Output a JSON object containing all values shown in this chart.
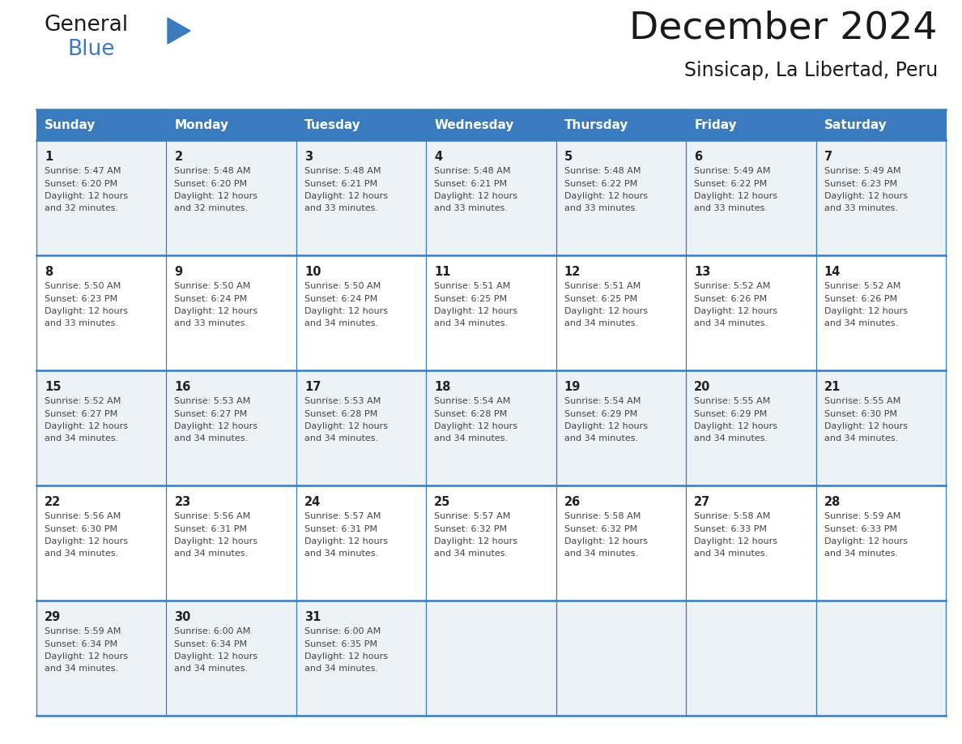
{
  "title": "December 2024",
  "subtitle": "Sinsicap, La Libertad, Peru",
  "header_bg_color": "#3a7bbf",
  "header_text_color": "#ffffff",
  "days_of_week": [
    "Sunday",
    "Monday",
    "Tuesday",
    "Wednesday",
    "Thursday",
    "Friday",
    "Saturday"
  ],
  "cell_bg_even": "#edf2f7",
  "cell_bg_odd": "#ffffff",
  "grid_line_color": "#3a7bbf",
  "day_number_color": "#222222",
  "cell_text_color": "#444444",
  "calendar": [
    [
      {
        "day": 1,
        "sunrise": "5:47 AM",
        "sunset": "6:20 PM",
        "daylight_hrs": 12,
        "daylight_min": 32
      },
      {
        "day": 2,
        "sunrise": "5:48 AM",
        "sunset": "6:20 PM",
        "daylight_hrs": 12,
        "daylight_min": 32
      },
      {
        "day": 3,
        "sunrise": "5:48 AM",
        "sunset": "6:21 PM",
        "daylight_hrs": 12,
        "daylight_min": 33
      },
      {
        "day": 4,
        "sunrise": "5:48 AM",
        "sunset": "6:21 PM",
        "daylight_hrs": 12,
        "daylight_min": 33
      },
      {
        "day": 5,
        "sunrise": "5:48 AM",
        "sunset": "6:22 PM",
        "daylight_hrs": 12,
        "daylight_min": 33
      },
      {
        "day": 6,
        "sunrise": "5:49 AM",
        "sunset": "6:22 PM",
        "daylight_hrs": 12,
        "daylight_min": 33
      },
      {
        "day": 7,
        "sunrise": "5:49 AM",
        "sunset": "6:23 PM",
        "daylight_hrs": 12,
        "daylight_min": 33
      }
    ],
    [
      {
        "day": 8,
        "sunrise": "5:50 AM",
        "sunset": "6:23 PM",
        "daylight_hrs": 12,
        "daylight_min": 33
      },
      {
        "day": 9,
        "sunrise": "5:50 AM",
        "sunset": "6:24 PM",
        "daylight_hrs": 12,
        "daylight_min": 33
      },
      {
        "day": 10,
        "sunrise": "5:50 AM",
        "sunset": "6:24 PM",
        "daylight_hrs": 12,
        "daylight_min": 34
      },
      {
        "day": 11,
        "sunrise": "5:51 AM",
        "sunset": "6:25 PM",
        "daylight_hrs": 12,
        "daylight_min": 34
      },
      {
        "day": 12,
        "sunrise": "5:51 AM",
        "sunset": "6:25 PM",
        "daylight_hrs": 12,
        "daylight_min": 34
      },
      {
        "day": 13,
        "sunrise": "5:52 AM",
        "sunset": "6:26 PM",
        "daylight_hrs": 12,
        "daylight_min": 34
      },
      {
        "day": 14,
        "sunrise": "5:52 AM",
        "sunset": "6:26 PM",
        "daylight_hrs": 12,
        "daylight_min": 34
      }
    ],
    [
      {
        "day": 15,
        "sunrise": "5:52 AM",
        "sunset": "6:27 PM",
        "daylight_hrs": 12,
        "daylight_min": 34
      },
      {
        "day": 16,
        "sunrise": "5:53 AM",
        "sunset": "6:27 PM",
        "daylight_hrs": 12,
        "daylight_min": 34
      },
      {
        "day": 17,
        "sunrise": "5:53 AM",
        "sunset": "6:28 PM",
        "daylight_hrs": 12,
        "daylight_min": 34
      },
      {
        "day": 18,
        "sunrise": "5:54 AM",
        "sunset": "6:28 PM",
        "daylight_hrs": 12,
        "daylight_min": 34
      },
      {
        "day": 19,
        "sunrise": "5:54 AM",
        "sunset": "6:29 PM",
        "daylight_hrs": 12,
        "daylight_min": 34
      },
      {
        "day": 20,
        "sunrise": "5:55 AM",
        "sunset": "6:29 PM",
        "daylight_hrs": 12,
        "daylight_min": 34
      },
      {
        "day": 21,
        "sunrise": "5:55 AM",
        "sunset": "6:30 PM",
        "daylight_hrs": 12,
        "daylight_min": 34
      }
    ],
    [
      {
        "day": 22,
        "sunrise": "5:56 AM",
        "sunset": "6:30 PM",
        "daylight_hrs": 12,
        "daylight_min": 34
      },
      {
        "day": 23,
        "sunrise": "5:56 AM",
        "sunset": "6:31 PM",
        "daylight_hrs": 12,
        "daylight_min": 34
      },
      {
        "day": 24,
        "sunrise": "5:57 AM",
        "sunset": "6:31 PM",
        "daylight_hrs": 12,
        "daylight_min": 34
      },
      {
        "day": 25,
        "sunrise": "5:57 AM",
        "sunset": "6:32 PM",
        "daylight_hrs": 12,
        "daylight_min": 34
      },
      {
        "day": 26,
        "sunrise": "5:58 AM",
        "sunset": "6:32 PM",
        "daylight_hrs": 12,
        "daylight_min": 34
      },
      {
        "day": 27,
        "sunrise": "5:58 AM",
        "sunset": "6:33 PM",
        "daylight_hrs": 12,
        "daylight_min": 34
      },
      {
        "day": 28,
        "sunrise": "5:59 AM",
        "sunset": "6:33 PM",
        "daylight_hrs": 12,
        "daylight_min": 34
      }
    ],
    [
      {
        "day": 29,
        "sunrise": "5:59 AM",
        "sunset": "6:34 PM",
        "daylight_hrs": 12,
        "daylight_min": 34
      },
      {
        "day": 30,
        "sunrise": "6:00 AM",
        "sunset": "6:34 PM",
        "daylight_hrs": 12,
        "daylight_min": 34
      },
      {
        "day": 31,
        "sunrise": "6:00 AM",
        "sunset": "6:35 PM",
        "daylight_hrs": 12,
        "daylight_min": 34
      },
      null,
      null,
      null,
      null
    ]
  ],
  "logo_triangle_color": "#3a7bbf",
  "fig_width": 11.88,
  "fig_height": 9.18,
  "dpi": 100
}
